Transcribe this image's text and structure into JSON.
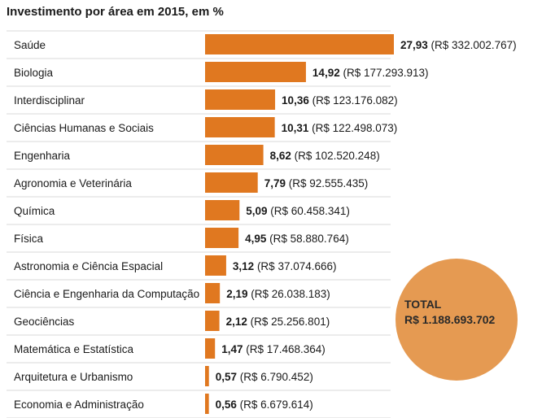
{
  "title": "Investimento por área em 2015, em %",
  "total": {
    "label": "TOTAL",
    "value": "R$ 1.188.693.702"
  },
  "colors": {
    "bar": "#e07820",
    "badge": "#e59a52",
    "divider": "#d8d8d8",
    "text": "#1a1a1a"
  },
  "chart_data": {
    "type": "bar",
    "orientation": "horizontal",
    "title": "Investimento por área em 2015, em %",
    "xlabel": "",
    "ylabel": "",
    "xlim": [
      0,
      28
    ],
    "grid": false,
    "legend": "none",
    "categories": [
      "Saúde",
      "Biologia",
      "Interdisciplinar",
      "Ciências Humanas e Sociais",
      "Engenharia",
      "Agronomia e Veterinária",
      "Química",
      "Física",
      "Astronomia e Ciência Espacial",
      "Ciência e Engenharia da Computação",
      "Geociências",
      "Matemática e Estatística",
      "Arquitetura e Urbanismo",
      "Economia e Administração"
    ],
    "values": [
      27.93,
      14.92,
      10.36,
      10.31,
      8.62,
      7.79,
      5.09,
      4.95,
      3.12,
      2.19,
      2.12,
      1.47,
      0.57,
      0.56
    ],
    "value_labels": [
      "27,93",
      "14,92",
      "10,36",
      "10,31",
      "8,62",
      "7,79",
      "5,09",
      "4,95",
      "3,12",
      "2,19",
      "2,12",
      "1,47",
      "0,57",
      "0,56"
    ],
    "amount_labels": [
      "(R$ 332.002.767)",
      "(R$ 177.293.913)",
      "(R$ 123.176.082)",
      "(R$ 122.498.073)",
      "(R$ 102.520.248)",
      "(R$ 92.555.435)",
      "(R$ 60.458.341)",
      "(R$ 58.880.764)",
      "(R$ 37.074.666)",
      "(R$ 26.038.183)",
      "(R$ 25.256.801)",
      "(R$ 17.468.364)",
      "(R$ 6.790.452)",
      "(R$ 6.679.614)"
    ]
  }
}
